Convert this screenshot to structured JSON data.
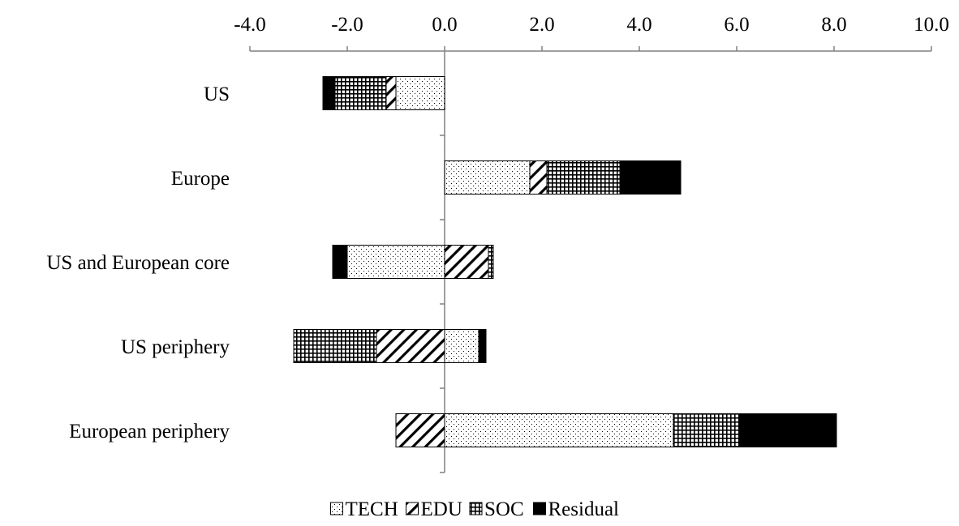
{
  "chart_data": {
    "type": "bar",
    "orientation": "horizontal",
    "stacked": true,
    "title": "",
    "xlabel": "",
    "ylabel": "",
    "xlim": [
      -4.0,
      10.0
    ],
    "x_ticks": [
      "-4.0",
      "-2.0",
      "0.0",
      "2.0",
      "4.0",
      "6.0",
      "8.0",
      "10.0"
    ],
    "x_axis_position": "top",
    "grid": false,
    "legend_position": "bottom",
    "categories": [
      "US",
      "Europe",
      "US and European core",
      "US periphery",
      "European periphery"
    ],
    "series": [
      {
        "name": "TECH",
        "pattern": "dots",
        "values": [
          -1.0,
          1.75,
          -2.0,
          0.7,
          4.7
        ]
      },
      {
        "name": "EDU",
        "pattern": "diagonal-hatch",
        "values": [
          -0.2,
          0.35,
          0.9,
          -1.4,
          -1.0
        ]
      },
      {
        "name": "SOC",
        "pattern": "grid",
        "values": [
          -1.05,
          1.5,
          0.1,
          -1.7,
          1.35
        ]
      },
      {
        "name": "Residual",
        "pattern": "solid",
        "values": [
          -0.25,
          1.25,
          -0.3,
          0.15,
          2.0
        ]
      }
    ],
    "colors": {
      "bar_stroke": "#000000",
      "fill": "#000000",
      "axis": "#808080",
      "background": "#ffffff"
    }
  }
}
